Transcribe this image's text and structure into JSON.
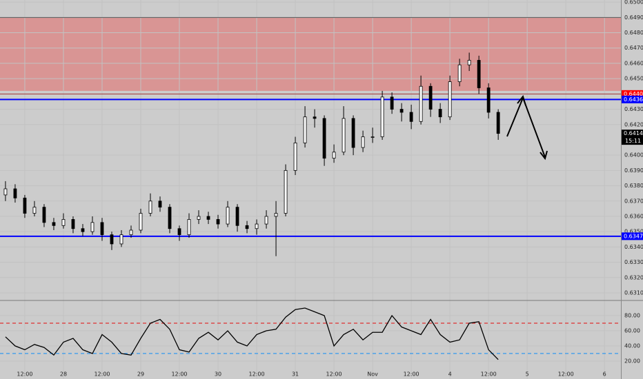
{
  "chart_data": [
    {
      "type": "candlestick",
      "x": [
        6,
        9,
        12,
        15,
        18,
        21,
        24,
        27,
        30,
        33,
        36,
        39,
        42,
        45,
        48,
        51,
        54,
        57,
        60,
        63,
        66,
        69,
        72,
        75,
        78,
        81,
        84,
        87,
        90,
        93,
        96,
        99,
        102,
        105,
        108,
        111,
        114,
        117,
        120,
        123,
        126,
        129,
        132,
        135,
        138,
        141,
        144,
        147,
        150,
        153,
        156,
        159
      ],
      "open": [
        0.6374,
        0.6378,
        0.6372,
        0.6362,
        0.6366,
        0.6356,
        0.6354,
        0.6358,
        0.6352,
        0.635,
        0.6356,
        0.6348,
        0.6342,
        0.6348,
        0.6351,
        0.6362,
        0.637,
        0.6366,
        0.6352,
        0.6348,
        0.6358,
        0.636,
        0.6358,
        0.6355,
        0.6366,
        0.6354,
        0.6352,
        0.6355,
        0.636,
        0.6362,
        0.639,
        0.6408,
        0.6425,
        0.6424,
        0.6398,
        0.6402,
        0.6424,
        0.6405,
        0.6412,
        0.6412,
        0.6438,
        0.643,
        0.6428,
        0.6422,
        0.6445,
        0.643,
        0.6425,
        0.6448,
        0.6459,
        0.6462,
        0.6444,
        0.6428
      ],
      "high": [
        0.6383,
        0.6381,
        0.6374,
        0.637,
        0.6368,
        0.6359,
        0.6362,
        0.636,
        0.6355,
        0.636,
        0.6359,
        0.635,
        0.6351,
        0.6354,
        0.6365,
        0.6375,
        0.6373,
        0.6368,
        0.6354,
        0.6362,
        0.6364,
        0.6363,
        0.6361,
        0.637,
        0.6368,
        0.6357,
        0.6358,
        0.6364,
        0.637,
        0.6394,
        0.6412,
        0.6432,
        0.643,
        0.6426,
        0.6407,
        0.6432,
        0.6426,
        0.6416,
        0.6418,
        0.6442,
        0.6441,
        0.6434,
        0.6433,
        0.6452,
        0.6447,
        0.6434,
        0.6452,
        0.6463,
        0.6467,
        0.6465,
        0.6447,
        0.643
      ],
      "low": [
        0.637,
        0.6369,
        0.6359,
        0.636,
        0.6353,
        0.6351,
        0.6352,
        0.6349,
        0.6347,
        0.6348,
        0.6344,
        0.6338,
        0.634,
        0.6346,
        0.6349,
        0.636,
        0.6363,
        0.6349,
        0.6344,
        0.6346,
        0.6355,
        0.6355,
        0.6352,
        0.6353,
        0.635,
        0.6349,
        0.6348,
        0.6352,
        0.6334,
        0.636,
        0.6387,
        0.6405,
        0.6418,
        0.6393,
        0.6395,
        0.64,
        0.64,
        0.6402,
        0.6408,
        0.641,
        0.6427,
        0.6422,
        0.6417,
        0.642,
        0.6425,
        0.6421,
        0.6423,
        0.6445,
        0.6455,
        0.644,
        0.6424,
        0.641
      ],
      "close": [
        0.6378,
        0.6372,
        0.6362,
        0.6366,
        0.6356,
        0.6354,
        0.6358,
        0.6352,
        0.635,
        0.6356,
        0.6348,
        0.6342,
        0.6348,
        0.6351,
        0.6362,
        0.637,
        0.6366,
        0.6352,
        0.6348,
        0.6358,
        0.636,
        0.6358,
        0.6355,
        0.6366,
        0.6354,
        0.6352,
        0.6355,
        0.636,
        0.6362,
        0.639,
        0.6408,
        0.6425,
        0.6424,
        0.6398,
        0.6402,
        0.6424,
        0.6405,
        0.6412,
        0.6412,
        0.6438,
        0.643,
        0.6428,
        0.6422,
        0.6445,
        0.643,
        0.6425,
        0.6448,
        0.6459,
        0.6462,
        0.6444,
        0.6428,
        0.64142
      ],
      "up_color": "#ffffff",
      "down_color": "#000000",
      "xlim": [
        4.3,
        197.1
      ],
      "xticks": [
        {
          "value": 12,
          "label": "12:00"
        },
        {
          "value": 24,
          "label": "28"
        },
        {
          "value": 36,
          "label": "12:00"
        },
        {
          "value": 48,
          "label": "29"
        },
        {
          "value": 60,
          "label": "12:00"
        },
        {
          "value": 72,
          "label": "30"
        },
        {
          "value": 84,
          "label": "12:00"
        },
        {
          "value": 96,
          "label": "31"
        },
        {
          "value": 108,
          "label": "12:00"
        },
        {
          "value": 120,
          "label": "Nov"
        },
        {
          "value": 132,
          "label": "12:00"
        },
        {
          "value": 144,
          "label": "4"
        },
        {
          "value": 156,
          "label": "12:00"
        },
        {
          "value": 168,
          "label": "5"
        },
        {
          "value": 180,
          "label": "12:00"
        },
        {
          "value": 192,
          "label": "6"
        }
      ],
      "ylim": [
        0.63055,
        0.65014
      ],
      "yticks": [
        {
          "value": 0.65,
          "label": "0.65000"
        },
        {
          "value": 0.649,
          "label": "0.64900"
        },
        {
          "value": 0.648,
          "label": "0.64800"
        },
        {
          "value": 0.647,
          "label": "0.64700"
        },
        {
          "value": 0.646,
          "label": "0.64600"
        },
        {
          "value": 0.645,
          "label": "0.64500"
        },
        {
          "value": 0.643,
          "label": "0.64300"
        },
        {
          "value": 0.642,
          "label": "0.64200"
        },
        {
          "value": 0.64,
          "label": "0.64000"
        },
        {
          "value": 0.639,
          "label": "0.63900"
        },
        {
          "value": 0.638,
          "label": "0.63800"
        },
        {
          "value": 0.637,
          "label": "0.63700"
        },
        {
          "value": 0.636,
          "label": "0.63600"
        },
        {
          "value": 0.635,
          "label": "0.63500"
        },
        {
          "value": 0.634,
          "label": "0.63400"
        },
        {
          "value": 0.633,
          "label": "0.63300"
        },
        {
          "value": 0.632,
          "label": "0.63200"
        },
        {
          "value": 0.631,
          "label": "0.63100"
        }
      ],
      "zone": {
        "range": [
          0.6442,
          0.649
        ],
        "color": "#d99594"
      },
      "levels": [
        {
          "value": 0.649,
          "color": "#555555"
        },
        {
          "value": {
            "value": 0.644,
            "label": "0.64400"
          },
          "color": "#a33333",
          "badge": "#ff0000"
        },
        {
          "value": 0.64364,
          "color": "#0000ff",
          "badge": "#0000ff"
        },
        {
          "value": {
            "value": 0.6347,
            "label": "0.63470"
          },
          "color": "#0000ff",
          "badge": "#0000ff"
        }
      ],
      "last_price": 0.64142,
      "countdown": "15:11",
      "grid": true
    },
    {
      "type": "line",
      "x": [
        6,
        9,
        12,
        15,
        18,
        21,
        24,
        27,
        30,
        33,
        36,
        39,
        42,
        45,
        48,
        51,
        54,
        57,
        60,
        63,
        66,
        69,
        72,
        75,
        78,
        81,
        84,
        87,
        90,
        93,
        96,
        99,
        102,
        105,
        108,
        111,
        114,
        117,
        120,
        123,
        126,
        129,
        132,
        135,
        138,
        141,
        144,
        147,
        150,
        153,
        156,
        159
      ],
      "values": [
        52,
        40,
        35,
        42,
        38,
        28,
        45,
        50,
        35,
        30,
        55,
        45,
        30,
        28,
        50,
        70,
        75,
        62,
        35,
        32,
        50,
        58,
        48,
        60,
        45,
        40,
        55,
        60,
        62,
        78,
        88,
        90,
        85,
        80,
        40,
        55,
        62,
        48,
        58,
        58,
        80,
        65,
        60,
        55,
        75,
        55,
        45,
        48,
        70,
        72,
        35,
        22
      ],
      "color": "#000000",
      "xlim": [
        4.3,
        197.1
      ],
      "ylim": [
        -3.6,
        99.1
      ],
      "yticks": [
        {
          "value": 80,
          "label": "80.00"
        },
        {
          "value": 60,
          "label": "60.00"
        },
        {
          "value": 40,
          "label": "40.00"
        },
        {
          "value": 20,
          "label": "20.00"
        }
      ],
      "bands": [
        {
          "value": 70,
          "color": "#e03030"
        },
        {
          "value": 30,
          "color": "#3399ee"
        }
      ]
    }
  ]
}
